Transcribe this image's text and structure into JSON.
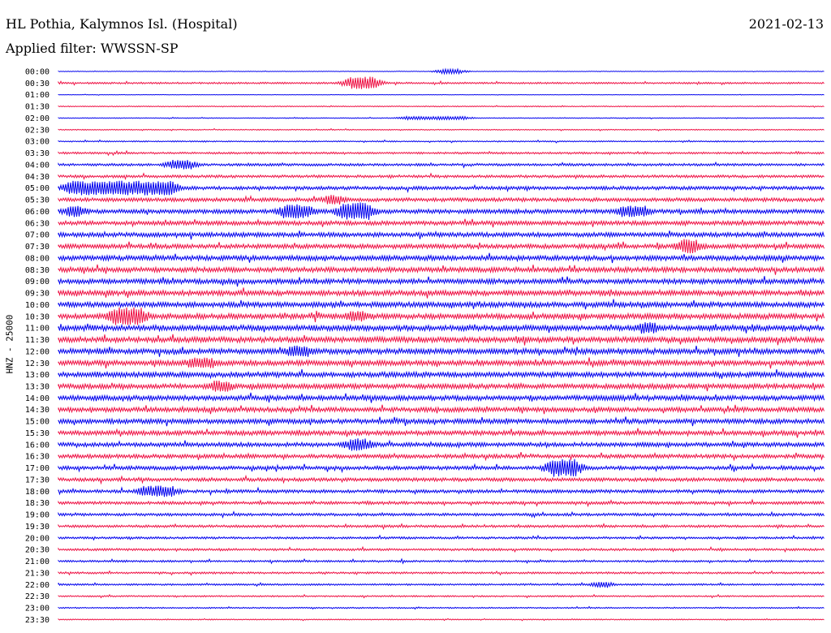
{
  "header": {
    "station": "HL Pothia, Kalymnos Isl. (Hospital)",
    "date": "2021-02-13",
    "filter": "Applied filter: WWSSN-SP"
  },
  "channel_label": "HNZ - 25000",
  "colors": {
    "trace_a": "#0000ee",
    "trace_b": "#ee1144",
    "background": "#ffffff"
  },
  "chart_data": {
    "type": "line",
    "subtype": "helicorder",
    "title": "HL Pothia, Kalymnos Isl. (Hospital)",
    "subtitle": "Applied filter: WWSSN-SP",
    "date": "2021-02-13",
    "ylabel": "HNZ - 25000",
    "xlabel": "",
    "row_duration_minutes": 30,
    "row_labels": [
      "00:00",
      "00:30",
      "01:00",
      "01:30",
      "02:00",
      "02:30",
      "03:00",
      "03:30",
      "04:00",
      "04:30",
      "05:00",
      "05:30",
      "06:00",
      "06:30",
      "07:00",
      "07:30",
      "08:00",
      "08:30",
      "09:00",
      "09:30",
      "10:00",
      "10:30",
      "11:00",
      "11:30",
      "12:00",
      "12:30",
      "13:00",
      "13:30",
      "14:00",
      "14:30",
      "15:00",
      "15:30",
      "16:00",
      "16:30",
      "17:00",
      "17:30",
      "18:00",
      "18:30",
      "19:00",
      "19:30",
      "20:00",
      "20:30",
      "21:00",
      "21:30",
      "22:00",
      "22:30",
      "23:00",
      "23:30"
    ],
    "row_colors": [
      "blue",
      "red"
    ],
    "noise_level": [
      0.2,
      0.7,
      0.2,
      0.4,
      0.3,
      0.4,
      0.5,
      0.8,
      1.0,
      1.1,
      1.4,
      1.5,
      1.7,
      1.7,
      1.8,
      1.8,
      2.0,
      2.0,
      2.0,
      2.1,
      2.1,
      2.2,
      2.3,
      2.2,
      2.2,
      2.1,
      2.1,
      2.0,
      2.0,
      1.9,
      1.9,
      1.8,
      1.7,
      1.6,
      1.5,
      1.4,
      1.3,
      1.2,
      1.1,
      1.0,
      0.9,
      0.9,
      0.8,
      0.8,
      0.7,
      0.6,
      0.5,
      0.4
    ],
    "events": [
      {
        "row": 0,
        "minute": 15.0,
        "amplitude": 3,
        "duration_minutes": 0.7
      },
      {
        "row": 1,
        "minute": 11.4,
        "amplitude": 8,
        "duration_minutes": 1.0
      },
      {
        "row": 4,
        "minute": 13.5,
        "amplitude": 2,
        "duration_minutes": 2.5
      },
      {
        "row": 8,
        "minute": 4.4,
        "amplitude": 6,
        "duration_minutes": 0.8
      },
      {
        "row": 10,
        "minute": 0.4,
        "amplitude": 9,
        "duration_minutes": 4.1
      },
      {
        "row": 11,
        "minute": 10.5,
        "amplitude": 6,
        "duration_minutes": 0.6
      },
      {
        "row": 12,
        "minute": 0.4,
        "amplitude": 7,
        "duration_minutes": 0.5
      },
      {
        "row": 12,
        "minute": 8.8,
        "amplitude": 9,
        "duration_minutes": 1.0
      },
      {
        "row": 12,
        "minute": 11.1,
        "amplitude": 11,
        "duration_minutes": 1.1
      },
      {
        "row": 12,
        "minute": 22.0,
        "amplitude": 7,
        "duration_minutes": 1.0
      },
      {
        "row": 15,
        "minute": 24.4,
        "amplitude": 9,
        "duration_minutes": 0.6
      },
      {
        "row": 21,
        "minute": 2.1,
        "amplitude": 11,
        "duration_minutes": 1.2
      },
      {
        "row": 21,
        "minute": 11.4,
        "amplitude": 7,
        "duration_minutes": 0.6
      },
      {
        "row": 22,
        "minute": 22.8,
        "amplitude": 7,
        "duration_minutes": 0.6
      },
      {
        "row": 24,
        "minute": 9.0,
        "amplitude": 7,
        "duration_minutes": 0.8
      },
      {
        "row": 25,
        "minute": 5.1,
        "amplitude": 7,
        "duration_minutes": 1.0
      },
      {
        "row": 27,
        "minute": 6.1,
        "amplitude": 7,
        "duration_minutes": 0.6
      },
      {
        "row": 32,
        "minute": 11.4,
        "amplitude": 8,
        "duration_minutes": 0.7
      },
      {
        "row": 34,
        "minute": 19.3,
        "amplitude": 11,
        "duration_minutes": 1.0
      },
      {
        "row": 36,
        "minute": 3.3,
        "amplitude": 7,
        "duration_minutes": 1.2
      },
      {
        "row": 44,
        "minute": 21.1,
        "amplitude": 4,
        "duration_minutes": 0.4
      }
    ]
  }
}
